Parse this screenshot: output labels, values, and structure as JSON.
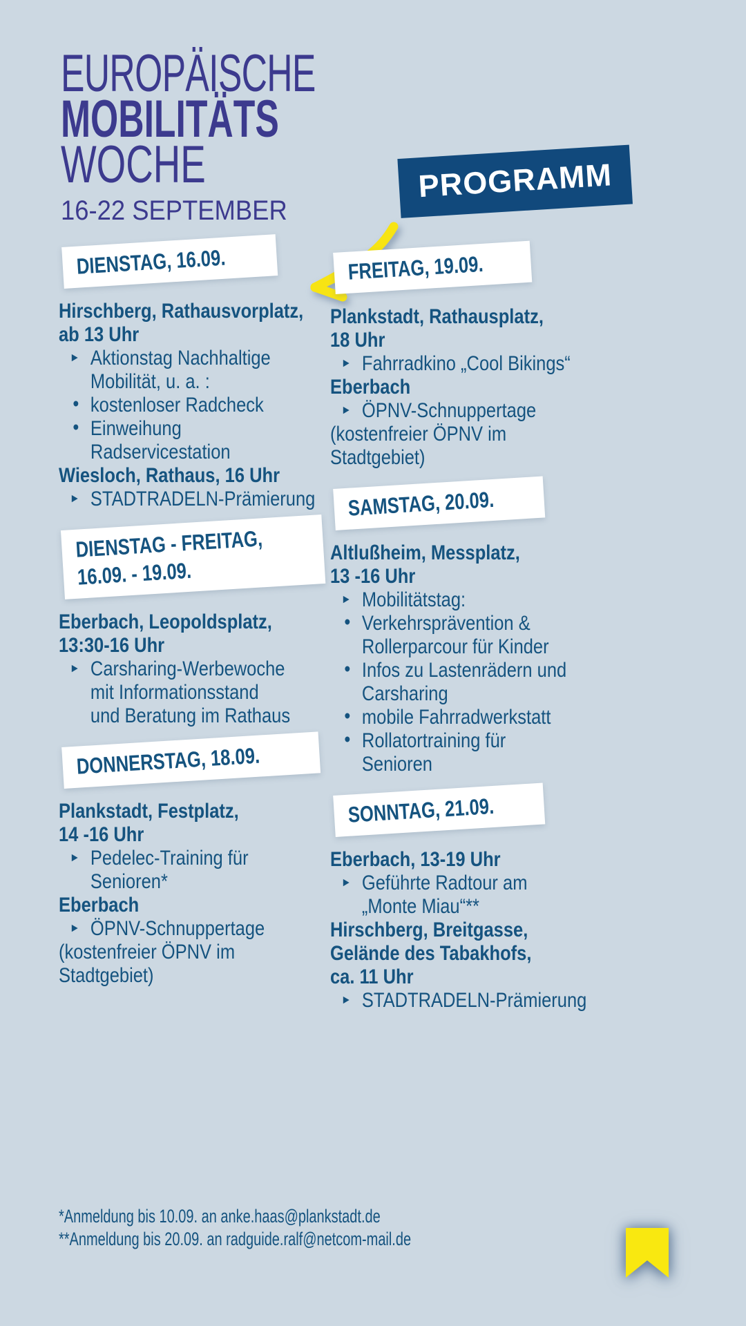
{
  "header": {
    "title_line1": "EUROPÄISCHE",
    "title_line2": "MOBILITÄTS",
    "title_line3": "WOCHE",
    "date_range": "16-22 SEPTEMBER",
    "programm_label": "PROGRAMM"
  },
  "colors": {
    "background": "#ccd8e2",
    "title_purple": "#3c3a8e",
    "text_blue": "#15537f",
    "banner_blue": "#11497c",
    "accent_yellow": "#f7e413",
    "banner_white": "#ffffff"
  },
  "markers": {
    "arrow": "▸",
    "dot": "•"
  },
  "columns": {
    "left": [
      {
        "banner": [
          "DIENSTAG, 16.09."
        ],
        "lines": [
          {
            "t": "Hirschberg, Rathausvorplatz,",
            "style": "bold"
          },
          {
            "t": "ab 13 Uhr",
            "style": "bold"
          },
          {
            "t": "Aktionstag Nachhaltige",
            "style": "arrow"
          },
          {
            "t": "Mobilität, u. a. :",
            "style": "indent"
          },
          {
            "t": "kostenloser Radcheck",
            "style": "dot"
          },
          {
            "t": "Einweihung",
            "style": "dot"
          },
          {
            "t": "Radservicestation",
            "style": "indent"
          },
          {
            "t": "Wiesloch, Rathaus, 16 Uhr",
            "style": "bold"
          },
          {
            "t": "STADTRADELN-Prämierung",
            "style": "arrow"
          }
        ]
      },
      {
        "banner": [
          "DIENSTAG - FREITAG,",
          "16.09. - 19.09."
        ],
        "lines": [
          {
            "t": "Eberbach, Leopoldsplatz,",
            "style": "bold"
          },
          {
            "t": "13:30-16 Uhr",
            "style": "bold"
          },
          {
            "t": "Carsharing-Werbewoche",
            "style": "arrow"
          },
          {
            "t": "mit Informationsstand",
            "style": "indent"
          },
          {
            "t": "und Beratung im Rathaus",
            "style": "indent"
          }
        ]
      },
      {
        "banner": [
          "DONNERSTAG, 18.09."
        ],
        "lines": [
          {
            "t": "Plankstadt, Festplatz,",
            "style": "bold"
          },
          {
            "t": "14 -16 Uhr",
            "style": "bold"
          },
          {
            "t": "Pedelec-Training für",
            "style": "arrow"
          },
          {
            "t": "Senioren*",
            "style": "indent"
          },
          {
            "t": "Eberbach",
            "style": "bold"
          },
          {
            "t": "ÖPNV-Schnuppertage",
            "style": "arrow"
          },
          {
            "t": "(kostenfreier ÖPNV im",
            "style": "plain"
          },
          {
            "t": "Stadtgebiet)",
            "style": "plain"
          }
        ]
      }
    ],
    "right": [
      {
        "banner": [
          "FREITAG, 19.09."
        ],
        "lines": [
          {
            "t": "Plankstadt, Rathausplatz,",
            "style": "bold"
          },
          {
            "t": "18 Uhr",
            "style": "bold"
          },
          {
            "t": "Fahrradkino „Cool Bikings“",
            "style": "arrow"
          },
          {
            "t": "Eberbach",
            "style": "bold"
          },
          {
            "t": "ÖPNV-Schnuppertage",
            "style": "arrow"
          },
          {
            "t": "(kostenfreier ÖPNV im",
            "style": "plain"
          },
          {
            "t": "Stadtgebiet)",
            "style": "plain"
          }
        ]
      },
      {
        "banner": [
          "SAMSTAG, 20.09."
        ],
        "lines": [
          {
            "t": "Altlußheim, Messplatz,",
            "style": "bold"
          },
          {
            "t": "13 -16 Uhr",
            "style": "bold"
          },
          {
            "t": "Mobilitätstag:",
            "style": "arrow"
          },
          {
            "t": "Verkehrsprävention &",
            "style": "dot"
          },
          {
            "t": "Rollerparcour für Kinder",
            "style": "indent"
          },
          {
            "t": "Infos zu Lastenrädern und",
            "style": "dot"
          },
          {
            "t": "Carsharing",
            "style": "indent"
          },
          {
            "t": "mobile Fahrradwerkstatt",
            "style": "dot"
          },
          {
            "t": "Rollatortraining für",
            "style": "dot"
          },
          {
            "t": "Senioren",
            "style": "indent"
          }
        ]
      },
      {
        "banner": [
          "SONNTAG, 21.09."
        ],
        "lines": [
          {
            "t": "Eberbach, 13-19 Uhr",
            "style": "bold"
          },
          {
            "t": "Geführte Radtour am",
            "style": "arrow"
          },
          {
            "t": "„Monte Miau“**",
            "style": "indent"
          },
          {
            "t": "Hirschberg, Breitgasse,",
            "style": "bold"
          },
          {
            "t": "Gelände des Tabakhofs,",
            "style": "bold"
          },
          {
            "t": "ca. 11 Uhr",
            "style": "bold"
          },
          {
            "t": "STADTRADELN-Prämierung",
            "style": "arrow"
          }
        ]
      }
    ]
  },
  "footnotes": [
    "*Anmeldung bis 10.09. an anke.haas@plankstadt.de",
    "**Anmeldung bis 20.09. an radguide.ralf@netcom-mail.de"
  ]
}
